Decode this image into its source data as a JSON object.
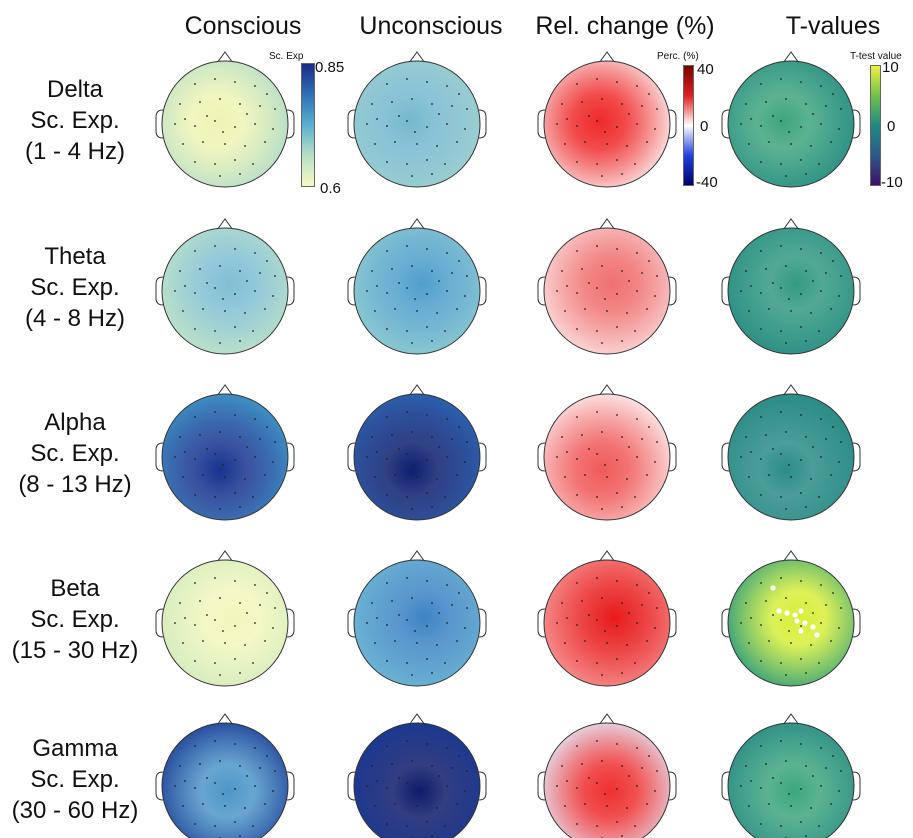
{
  "columns": [
    {
      "key": "conscious",
      "title": "Conscious"
    },
    {
      "key": "unconscious",
      "title": "Unconscious"
    },
    {
      "key": "relchange",
      "title": "Rel. change (%)"
    },
    {
      "key": "tvalues",
      "title": "T-values"
    }
  ],
  "rows": [
    {
      "band": "Delta",
      "measure": "Sc. Exp.",
      "range": "(1 - 4 Hz)"
    },
    {
      "band": "Theta",
      "measure": "Sc. Exp.",
      "range": "(4 - 8 Hz)"
    },
    {
      "band": "Alpha",
      "measure": "Sc. Exp.",
      "range": "(8 - 13 Hz)"
    },
    {
      "band": "Beta",
      "measure": "Sc. Exp.",
      "range": "(15 - 30 Hz)"
    },
    {
      "band": "Gamma",
      "measure": "Sc. Exp.",
      "range": "(30 - 60 Hz)"
    }
  ],
  "colorbars": {
    "scexp": {
      "title": "Sc. Exp",
      "max": "0.85",
      "min": "0.6",
      "colors": [
        "#1a2b8a",
        "#2f6fb5",
        "#5bb0cf",
        "#b6e0c4",
        "#f7f9c2"
      ]
    },
    "perc": {
      "title": "Perc. (%)",
      "max": "40",
      "mid": "0",
      "min": "-40",
      "colors": [
        "#7a0000",
        "#e02020",
        "#ffffff",
        "#2040e0",
        "#000070"
      ]
    },
    "ttest": {
      "title": "T-test value",
      "max": "10",
      "mid": "0",
      "min": "-10",
      "colors": [
        "#f0f040",
        "#6fc24a",
        "#1e8a80",
        "#2d5a8a",
        "#3b0f6b"
      ]
    }
  },
  "maps": [
    [
      {
        "base": "#b4ddc8",
        "blob": "#eef4b4"
      },
      {
        "base": "#9ccfcf",
        "blob": "#74b8cf"
      },
      {
        "base": "#fbe8e8",
        "blob": "#ef2a2a"
      },
      {
        "base": "#2b8f85",
        "blob": "#3ea57e"
      }
    ],
    [
      {
        "base": "#bfe3c8",
        "blob": "#7fbfd3"
      },
      {
        "base": "#8ccad0",
        "blob": "#4f9fcc"
      },
      {
        "base": "#fbdada",
        "blob": "#f07070"
      },
      {
        "base": "#2b8f85",
        "blob": "#339a80"
      }
    ],
    [
      {
        "base": "#3e8fc4",
        "blob": "#17338f"
      },
      {
        "base": "#2b5fae",
        "blob": "#0d1f6e"
      },
      {
        "base": "#fbe0e0",
        "blob": "#f05a5a"
      },
      {
        "base": "#2b8c86",
        "blob": "#2b8c86"
      }
    ],
    [
      {
        "base": "#d3ecbf",
        "blob": "#f2f6bc"
      },
      {
        "base": "#6cb6d4",
        "blob": "#3d84c4"
      },
      {
        "base": "#f69090",
        "blob": "#e81a1a"
      },
      {
        "base": "#33a07c",
        "blob": "#d7ef3a"
      }
    ],
    [
      {
        "base": "#1d3e96",
        "blob": "#4d96c8"
      },
      {
        "base": "#193895",
        "blob": "#0e1c6a"
      },
      {
        "base": "#e4e8f8",
        "blob": "#ef3030"
      },
      {
        "base": "#2b8c86",
        "blob": "#3da67e"
      }
    ]
  ]
}
